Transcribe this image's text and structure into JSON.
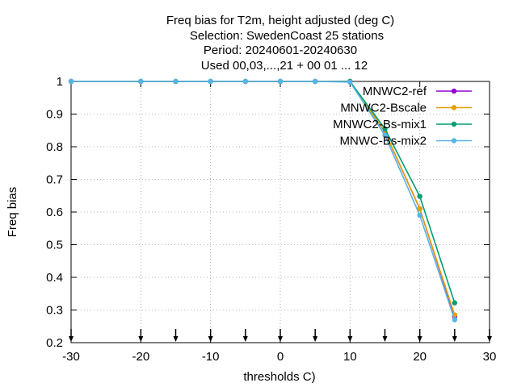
{
  "chart_data": {
    "type": "line",
    "title_lines": [
      "Freq bias  for T2m, height adjusted (deg C)",
      "Selection: SwedenCoast     25 stations",
      "Period: 20240601-20240630",
      "Used 00,03,...,21 + 00 01 ... 12"
    ],
    "xlabel": "thresholds C)",
    "ylabel": "Freq bias",
    "xlim": [
      -30,
      30
    ],
    "ylim": [
      0.2,
      1.0
    ],
    "xticks": [
      -30,
      -20,
      -10,
      0,
      10,
      20,
      30
    ],
    "yticks": [
      0.2,
      0.3,
      0.4,
      0.5,
      0.6,
      0.7,
      0.8,
      0.9,
      1.0
    ],
    "ytick_labels": [
      "0.2",
      "0.3",
      "0.4",
      "0.5",
      "0.6",
      "0.7",
      "0.8",
      "0.9",
      "1"
    ],
    "grid": true,
    "legend_position": "top-right",
    "arrow_markers_x": [
      -30,
      -20,
      -15,
      -10,
      -5,
      0,
      5,
      10,
      15,
      20,
      25,
      30
    ],
    "x": [
      -30,
      -20,
      -15,
      -10,
      -5,
      0,
      5,
      10,
      15,
      20,
      25
    ],
    "series": [
      {
        "name": "MNWC2-ref",
        "color": "#9400d3",
        "marker": "circle",
        "values": [
          1.0,
          1.0,
          1.0,
          1.0,
          1.0,
          1.0,
          1.0,
          1.0,
          0.845,
          0.61,
          0.28
        ]
      },
      {
        "name": "MNWC2-Bscale",
        "color": "#e69f00",
        "marker": "circle",
        "values": [
          1.0,
          1.0,
          1.0,
          1.0,
          1.0,
          1.0,
          1.0,
          1.0,
          0.845,
          0.61,
          0.285
        ]
      },
      {
        "name": "MNWC2-Bs-mix1",
        "color": "#009e73",
        "marker": "circle",
        "values": [
          1.0,
          1.0,
          1.0,
          1.0,
          1.0,
          1.0,
          1.0,
          1.0,
          0.855,
          0.648,
          0.322
        ]
      },
      {
        "name": "MNWC-Bs-mix2",
        "color": "#56b4e9",
        "marker": "circle",
        "values": [
          1.0,
          1.0,
          1.0,
          1.0,
          1.0,
          1.0,
          1.0,
          0.998,
          0.835,
          0.59,
          0.27
        ]
      }
    ]
  }
}
